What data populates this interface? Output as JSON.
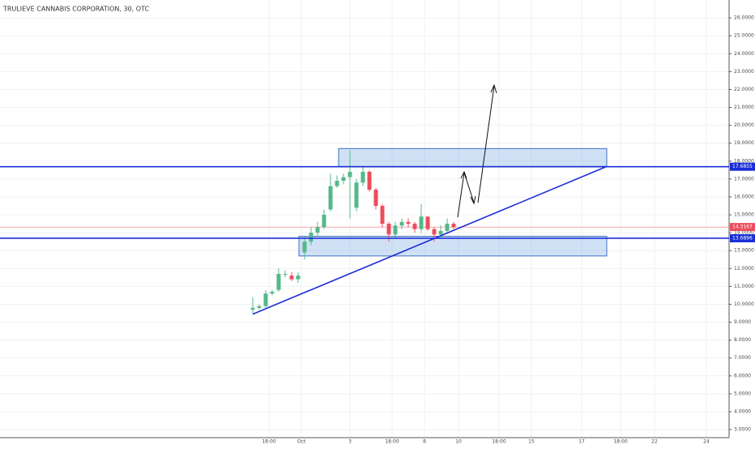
{
  "chart_data": {
    "type": "candlestick",
    "title": "TRULIEVE CANNABIS CORPORATION, 30, OTC",
    "x": [
      78,
      80,
      82,
      84,
      86,
      88,
      90,
      92,
      94,
      96,
      98,
      100,
      102,
      104,
      106,
      108,
      110,
      112,
      114,
      116,
      118,
      120,
      122,
      124,
      126,
      128,
      130,
      132,
      134,
      136,
      138,
      140
    ],
    "open": [
      9.7,
      9.8,
      9.9,
      10.6,
      10.8,
      11.7,
      11.6,
      11.4,
      12.9,
      13.5,
      14.0,
      14.3,
      15.3,
      16.6,
      16.9,
      17.1,
      15.4,
      16.8,
      17.4,
      16.4,
      15.5,
      14.5,
      13.9,
      14.4,
      14.6,
      14.5,
      14.2,
      14.9,
      14.2,
      13.9,
      14.1,
      14.5
    ],
    "high": [
      10.4,
      10.0,
      10.8,
      10.8,
      12.0,
      11.9,
      11.8,
      11.8,
      13.8,
      14.3,
      14.6,
      15.3,
      17.3,
      17.2,
      17.3,
      18.6,
      17.0,
      17.7,
      17.5,
      16.5,
      15.6,
      14.6,
      14.6,
      14.8,
      14.8,
      14.6,
      15.6,
      14.9,
      14.3,
      14.4,
      14.8,
      14.6
    ],
    "low": [
      9.5,
      9.7,
      9.8,
      10.5,
      10.7,
      11.5,
      11.3,
      11.2,
      12.5,
      13.3,
      13.8,
      14.2,
      15.2,
      16.5,
      16.7,
      14.8,
      15.2,
      16.6,
      16.3,
      15.3,
      14.3,
      13.5,
      13.7,
      14.2,
      14.3,
      14.0,
      14.0,
      14.1,
      13.5,
      13.7,
      14.0,
      14.2
    ],
    "close": [
      9.8,
      9.9,
      10.6,
      10.7,
      11.7,
      11.7,
      11.4,
      11.6,
      13.5,
      14.0,
      14.3,
      15.0,
      16.6,
      16.9,
      17.1,
      17.4,
      16.8,
      17.4,
      16.4,
      15.5,
      14.5,
      13.9,
      14.4,
      14.6,
      14.5,
      14.2,
      14.9,
      14.2,
      13.9,
      14.1,
      14.5,
      14.3
    ],
    "up_color": "#53b987",
    "down_color": "#eb4d5c",
    "xlim": [
      0,
      225
    ],
    "xticks": [
      {
        "value": 83,
        "label": "18:00"
      },
      {
        "value": 93,
        "label": "Oct"
      },
      {
        "value": 108,
        "label": "3"
      },
      {
        "value": 121,
        "label": "18:00"
      },
      {
        "value": 131,
        "label": "8"
      },
      {
        "value": 141.5,
        "label": "10"
      },
      {
        "value": 154,
        "label": "18:00"
      },
      {
        "value": 164,
        "label": "15"
      },
      {
        "value": 179.5,
        "label": "17"
      },
      {
        "value": 191.5,
        "label": "18:00"
      },
      {
        "value": 202,
        "label": "22"
      },
      {
        "value": 218,
        "label": "24"
      }
    ],
    "ylim": [
      2.55,
      27.0
    ],
    "yticks": [
      {
        "value": 3,
        "label": "3.0000"
      },
      {
        "value": 4,
        "label": "4.0000"
      },
      {
        "value": 5,
        "label": "5.0000"
      },
      {
        "value": 6,
        "label": "6.0000"
      },
      {
        "value": 7,
        "label": "7.0000"
      },
      {
        "value": 8,
        "label": "8.0000"
      },
      {
        "value": 9,
        "label": "9.0000"
      },
      {
        "value": 10,
        "label": "10.0000"
      },
      {
        "value": 11,
        "label": "11.0000"
      },
      {
        "value": 12,
        "label": "12.0000"
      },
      {
        "value": 13,
        "label": "13.0000"
      },
      {
        "value": 14,
        "label": "14.0000"
      },
      {
        "value": 15,
        "label": "15.0000"
      },
      {
        "value": 16,
        "label": "16.0000"
      },
      {
        "value": 17,
        "label": "17.0000"
      },
      {
        "value": 18,
        "label": "18.0000"
      },
      {
        "value": 19,
        "label": "19.0000"
      },
      {
        "value": 20,
        "label": "20.0000"
      },
      {
        "value": 21,
        "label": "21.0000"
      },
      {
        "value": 22,
        "label": "22.0000"
      },
      {
        "value": 23,
        "label": "23.0000"
      },
      {
        "value": 24,
        "label": "24.0000"
      },
      {
        "value": 25,
        "label": "25.0000"
      },
      {
        "value": 26,
        "label": "26.0000"
      }
    ],
    "grid": true,
    "hlines": [
      {
        "value": 17.6855,
        "label": "17.6855",
        "color": "#1a2ed6"
      },
      {
        "value": 13.6896,
        "label": "13.6896",
        "color": "#1a2ed6"
      }
    ],
    "last_price": {
      "value": 14.3167,
      "label": "14.3167",
      "color": "#eb4d5c"
    },
    "zones": [
      {
        "x0": 104.5,
        "x1": 187.25,
        "y0": 17.7,
        "y1": 18.7
      },
      {
        "x0": 92.25,
        "x1": 187.25,
        "y0": 12.7,
        "y1": 13.8
      }
    ],
    "trendline": {
      "x": [
        78,
        187.25
      ],
      "y": [
        9.45,
        17.7
      ],
      "color": "#1a2ed6"
    }
  }
}
